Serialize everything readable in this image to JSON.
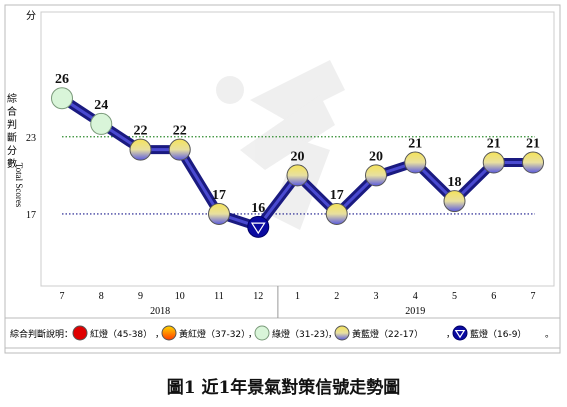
{
  "chart_data": {
    "type": "line",
    "yunit": "分",
    "ylabel_cn": "綜合判斷分數",
    "ylabel_en": "Total Scores",
    "yticks": [
      23,
      17
    ],
    "ylim": [
      11.4,
      32.7
    ],
    "x": [
      "7",
      "8",
      "9",
      "10",
      "11",
      "12",
      "1",
      "2",
      "3",
      "4",
      "5",
      "6",
      "7"
    ],
    "years": [
      {
        "label": "2018",
        "from": 0,
        "to": 5
      },
      {
        "label": "2019",
        "from": 6,
        "to": 12
      }
    ],
    "series": [
      {
        "values": [
          26,
          24,
          22,
          22,
          17,
          16,
          20,
          17,
          20,
          21,
          18,
          21,
          21
        ],
        "signals": [
          "green",
          "green",
          "yellow-blue",
          "yellow-blue",
          "yellow-blue",
          "blue",
          "yellow-blue",
          "yellow-blue",
          "yellow-blue",
          "yellow-blue",
          "yellow-blue",
          "yellow-blue",
          "yellow-blue"
        ]
      }
    ],
    "thresholds": [
      {
        "value": 23,
        "color": "#2e8b2e"
      },
      {
        "value": 17,
        "color": "#1a1a8c"
      }
    ],
    "legend": {
      "title": "綜合判斷說明：",
      "items": [
        {
          "label": "紅燈（45-38）",
          "signal": "red"
        },
        {
          "label": "黃紅燈（37-32）",
          "signal": "yellow-red"
        },
        {
          "label": "綠燈（31-23）",
          "signal": "green"
        },
        {
          "label": "黃藍燈（22-17）",
          "signal": "yellow-blue"
        },
        {
          "label": "藍燈（16-9）",
          "signal": "blue"
        }
      ],
      "sep": "，",
      "end": "。"
    }
  },
  "caption": "圖1 近1年景氣對策信號走勢圖",
  "colors": {
    "line": "#1a1a80",
    "green_signal": "#d9f5d9",
    "red_signal": "#e00000",
    "blue_signal": "#0a0aa0"
  }
}
